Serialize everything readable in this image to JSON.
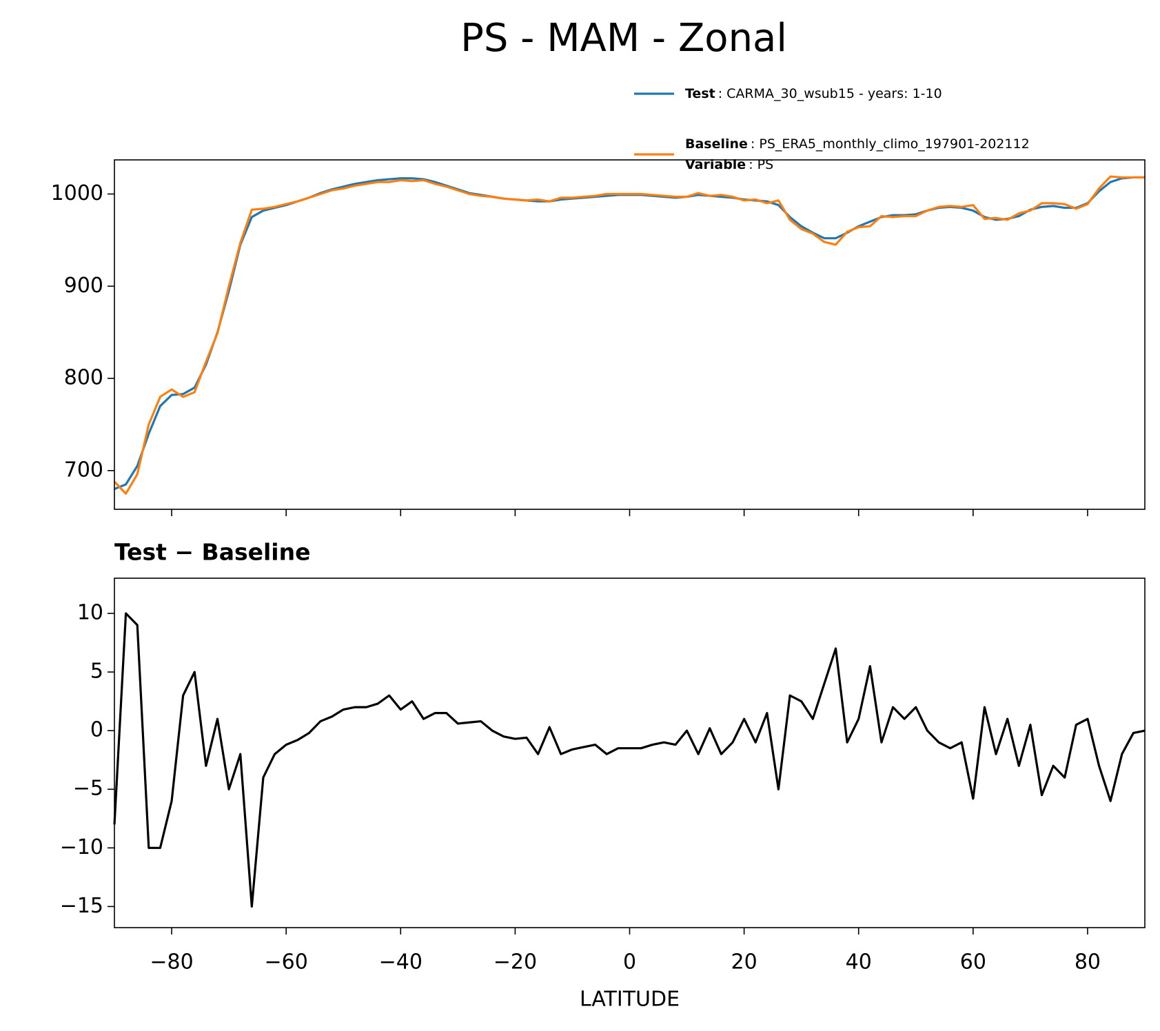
{
  "title": "PS - MAM - Zonal",
  "chart_data": [
    {
      "type": "line",
      "x": [
        -90,
        -88,
        -86,
        -84,
        -82,
        -80,
        -78,
        -76,
        -74,
        -72,
        -70,
        -68,
        -66,
        -64,
        -62,
        -60,
        -58,
        -56,
        -54,
        -52,
        -50,
        -48,
        -46,
        -44,
        -42,
        -40,
        -38,
        -36,
        -34,
        -32,
        -30,
        -28,
        -26,
        -24,
        -22,
        -20,
        -18,
        -16,
        -14,
        -12,
        -10,
        -8,
        -6,
        -4,
        -2,
        0,
        2,
        4,
        6,
        8,
        10,
        12,
        14,
        16,
        18,
        20,
        22,
        24,
        26,
        28,
        30,
        32,
        34,
        36,
        38,
        40,
        42,
        44,
        46,
        48,
        50,
        52,
        54,
        56,
        58,
        60,
        62,
        64,
        66,
        68,
        70,
        72,
        74,
        76,
        78,
        80,
        82,
        84,
        86,
        88,
        90
      ],
      "series": [
        {
          "name": "Test",
          "description": ": CARMA_30_wsub15 - years: 1-10",
          "color": "#1f77b4",
          "values": [
            680,
            685,
            705,
            740,
            770,
            782,
            783,
            790,
            815,
            850,
            895,
            945,
            975,
            982,
            985,
            988,
            992,
            996,
            1001,
            1005,
            1008,
            1011,
            1013,
            1015,
            1016,
            1017,
            1017,
            1016,
            1013,
            1009,
            1005,
            1001,
            999,
            997,
            995,
            994,
            993,
            992,
            992,
            994,
            995,
            996,
            997,
            998,
            999,
            999,
            999,
            998,
            997,
            996,
            997,
            999,
            998,
            997,
            996,
            994,
            993,
            992,
            988,
            975,
            965,
            958,
            952,
            952,
            958,
            965,
            970,
            975,
            977,
            977,
            978,
            982,
            985,
            986,
            985,
            982,
            975,
            972,
            973,
            976,
            983,
            986,
            987,
            985,
            985,
            990,
            1003,
            1013,
            1017,
            1018,
            1018
          ]
        },
        {
          "name": "Baseline",
          "description": ": PS_ERA5_monthly_climo_197901-202112",
          "extra_name": "Variable",
          "extra_description": ": PS",
          "color": "#ff7f0e",
          "values": [
            688,
            675,
            696,
            750,
            780,
            788,
            780,
            785,
            818,
            849,
            900,
            947,
            983,
            984,
            986,
            989,
            992,
            996,
            1000,
            1004,
            1006,
            1009,
            1011,
            1013,
            1013,
            1015,
            1014,
            1015,
            1011,
            1008,
            1004,
            1000,
            998,
            997,
            995,
            994,
            993,
            994,
            992,
            996,
            996,
            997,
            998,
            1000,
            1000,
            1000,
            1000,
            999,
            998,
            997,
            997,
            1001,
            998,
            999,
            997,
            993,
            994,
            990,
            993,
            972,
            962,
            957,
            948,
            945,
            959,
            964,
            965,
            976,
            975,
            976,
            976,
            982,
            986,
            987,
            986,
            988,
            973,
            974,
            972,
            979,
            982,
            990,
            990,
            989,
            984,
            989,
            1006,
            1019,
            1018,
            1018,
            1018
          ]
        }
      ],
      "xlim": [
        -90,
        90
      ],
      "xticks": [
        -80,
        -60,
        -40,
        -20,
        0,
        20,
        40,
        60,
        80
      ],
      "ylim": [
        658,
        1037
      ],
      "yticks": [
        700,
        800,
        900,
        1000
      ]
    },
    {
      "type": "line",
      "title": "Test − Baseline",
      "xlabel": "LATITUDE",
      "x": [
        -90,
        -88,
        -86,
        -84,
        -82,
        -80,
        -78,
        -76,
        -74,
        -72,
        -70,
        -68,
        -66,
        -64,
        -62,
        -60,
        -58,
        -56,
        -54,
        -52,
        -50,
        -48,
        -46,
        -44,
        -42,
        -40,
        -38,
        -36,
        -34,
        -32,
        -30,
        -28,
        -26,
        -24,
        -22,
        -20,
        -18,
        -16,
        -14,
        -12,
        -10,
        -8,
        -6,
        -4,
        -2,
        0,
        2,
        4,
        6,
        8,
        10,
        12,
        14,
        16,
        18,
        20,
        22,
        24,
        26,
        28,
        30,
        32,
        34,
        36,
        38,
        40,
        42,
        44,
        46,
        48,
        50,
        52,
        54,
        56,
        58,
        60,
        62,
        64,
        66,
        68,
        70,
        72,
        74,
        76,
        78,
        80,
        82,
        84,
        86,
        88,
        90
      ],
      "series": [
        {
          "color": "#000000",
          "values": [
            -8,
            10,
            9,
            -10,
            -10,
            -6,
            3,
            5,
            -3,
            1,
            -5,
            -2,
            -15,
            -4,
            -2,
            -1.2,
            -0.8,
            -0.2,
            0.8,
            1.2,
            1.8,
            2,
            2,
            2.3,
            3,
            1.8,
            2.5,
            1,
            1.5,
            1.5,
            0.6,
            0.7,
            0.8,
            0,
            -0.5,
            -0.7,
            -0.6,
            -2,
            0.3,
            -2,
            -1.6,
            -1.4,
            -1.2,
            -2,
            -1.5,
            -1.5,
            -1.5,
            -1.2,
            -1,
            -1.2,
            0,
            -2,
            0.2,
            -2,
            -1,
            1,
            -1,
            1.5,
            -5,
            3,
            2.5,
            1,
            4,
            7,
            -1,
            1,
            5.5,
            -1,
            2,
            1,
            2,
            0,
            -1,
            -1.5,
            -1,
            -5.8,
            2,
            -2,
            1,
            -3,
            0.5,
            -5.5,
            -3,
            -4,
            0.5,
            1,
            -3,
            -6,
            -2,
            -0.2,
            0
          ]
        }
      ],
      "xlim": [
        -90,
        90
      ],
      "xticks": [
        {
          "value": -80,
          "label": "−80"
        },
        {
          "value": -60,
          "label": "−60"
        },
        {
          "value": -40,
          "label": "−40"
        },
        {
          "value": -20,
          "label": "−20"
        },
        0,
        20,
        40,
        60,
        80
      ],
      "ylim": [
        -16.8,
        13
      ],
      "yticks": [
        {
          "value": -15,
          "label": "−15"
        },
        {
          "value": -10,
          "label": "−10"
        },
        {
          "value": -5,
          "label": "−5"
        },
        0,
        5,
        10
      ]
    }
  ]
}
